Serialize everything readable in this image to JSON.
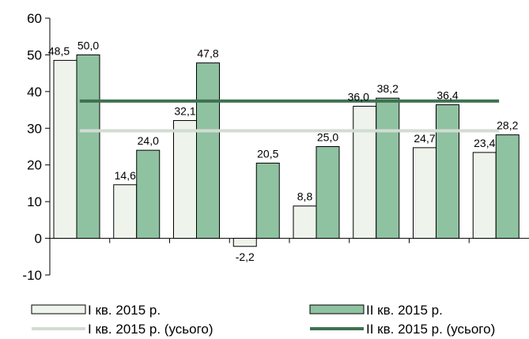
{
  "chart_data": {
    "type": "bar",
    "categories": [
      "",
      "",
      "",
      "",
      "",
      "",
      "",
      ""
    ],
    "series": [
      {
        "name": "I кв. 2015 р.",
        "values": [
          48.5,
          14.6,
          32.1,
          -2.2,
          8.8,
          36.0,
          24.7,
          23.4
        ],
        "labels": [
          "48,5",
          "14,6",
          "32,1",
          "-2,2",
          "8,8",
          "36,0",
          "24,7",
          "23,4"
        ],
        "color": "#eef4ec",
        "border": "#000000"
      },
      {
        "name": "II кв. 2015 р.",
        "values": [
          50.0,
          24.0,
          47.8,
          20.5,
          25.0,
          38.2,
          36.4,
          28.2
        ],
        "labels": [
          "50,0",
          "24,0",
          "47,8",
          "20,5",
          "25,0",
          "38,2",
          "36,4",
          "28,2"
        ],
        "color": "#8fc2a1",
        "border": "#000000"
      }
    ],
    "lines": [
      {
        "name": "I кв. 2015 р. (усього)",
        "value": 29.3,
        "color": "#d3dcd2"
      },
      {
        "name": "II кв. 2015 р. (усього)",
        "value": 37.4,
        "color": "#3f7150"
      }
    ],
    "ylim": [
      -10,
      60
    ],
    "yticks": [
      -10,
      0,
      10,
      20,
      30,
      40,
      50,
      60
    ],
    "title": "",
    "xlabel": "",
    "ylabel": "",
    "grid": false,
    "legend_position": "bottom"
  }
}
